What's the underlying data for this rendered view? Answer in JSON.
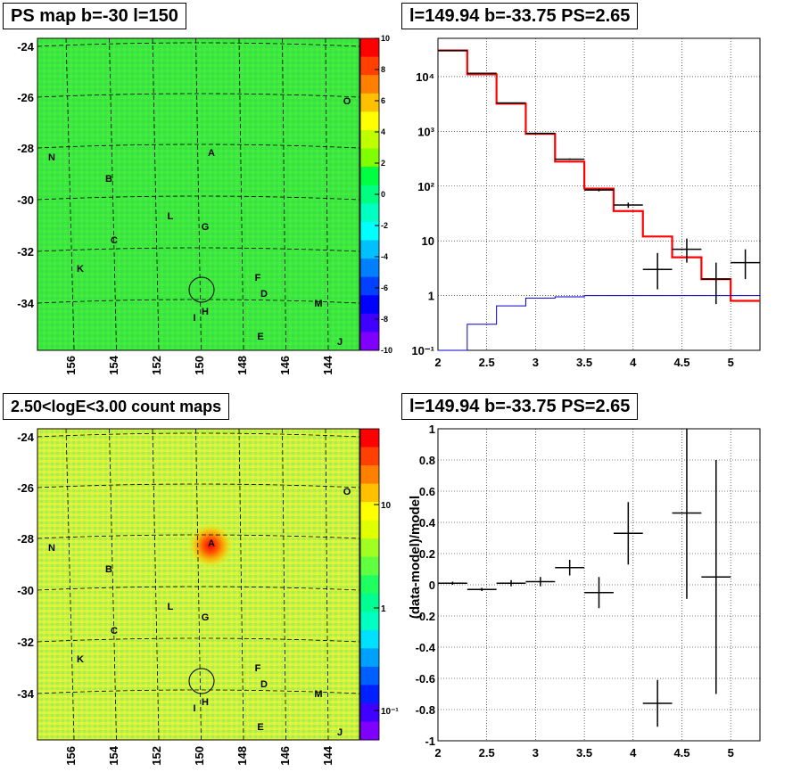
{
  "panels": {
    "map_top": {
      "title": "PS map b=-30 l=150",
      "colorbar_ticks": [
        "10",
        "8",
        "6",
        "4",
        "2",
        "0",
        "-2",
        "-4",
        "-6",
        "-8",
        "-10"
      ],
      "colorbar_colors": [
        "#ff0000",
        "#ff4000",
        "#ff8000",
        "#ffc000",
        "#ffff00",
        "#c0ff00",
        "#80ff00",
        "#00ff40",
        "#00ff80",
        "#00ffc0",
        "#00ffff",
        "#00c0ff",
        "#0080ff",
        "#0040ff",
        "#0000ff",
        "#4000ff",
        "#8000ff"
      ]
    },
    "map_bottom": {
      "title": "2.50<logE<3.00 count maps",
      "colorbar_ticks": [
        "10",
        "1",
        "10⁻¹"
      ]
    },
    "spectrum": {
      "title": "l=149.94 b=-33.75 PS=2.65",
      "y_ticks": [
        "10⁴",
        "10³",
        "10²",
        "10",
        "1",
        "10⁻¹"
      ],
      "x_ticks": [
        "2",
        "2.5",
        "3",
        "3.5",
        "4",
        "4.5",
        "5"
      ]
    },
    "residual": {
      "title": "l=149.94 b=-33.75 PS=2.65",
      "ylabel": "(data-model)/model",
      "y_ticks": [
        "1",
        "0.8",
        "0.6",
        "0.4",
        "0.2",
        "0",
        "-0.2",
        "-0.4",
        "-0.6",
        "-0.8",
        "-1"
      ],
      "x_ticks": [
        "2",
        "2.5",
        "3",
        "3.5",
        "4",
        "4.5",
        "5"
      ]
    }
  },
  "map_axes": {
    "y_ticks": [
      "-24",
      "-26",
      "-28",
      "-30",
      "-32",
      "-34"
    ],
    "x_ticks": [
      "156",
      "154",
      "152",
      "150",
      "148",
      "146",
      "144"
    ]
  },
  "sources": [
    "A",
    "B",
    "C",
    "D",
    "E",
    "F",
    "G",
    "H",
    "I",
    "J",
    "K",
    "L",
    "M",
    "N",
    "O"
  ],
  "chart_data": [
    {
      "type": "line",
      "title": "l=149.94 b=-33.75 PS=2.65",
      "log_y": true,
      "xlim": [
        2,
        5.3
      ],
      "ylim": [
        0.1,
        50000
      ],
      "grid": true,
      "bin_edges": [
        2.0,
        2.3,
        2.6,
        2.9,
        3.2,
        3.5,
        3.8,
        4.1,
        4.4,
        4.7,
        5.0,
        5.3
      ],
      "series": [
        {
          "color": "#ff0000",
          "kind": "step",
          "values": [
            30000,
            11000,
            3200,
            900,
            280,
            90,
            35,
            12,
            5,
            2,
            0.8
          ]
        },
        {
          "color": "#0000cc",
          "kind": "step",
          "values": [
            0.1,
            0.3,
            0.65,
            0.9,
            0.95,
            1.0,
            1.0,
            1.0,
            1.0,
            1.0,
            1.0
          ]
        },
        {
          "color": "#000000",
          "kind": "points",
          "x": [
            2.15,
            2.45,
            2.75,
            3.05,
            3.35,
            3.65,
            3.95,
            4.25,
            4.55,
            4.85,
            5.15
          ],
          "y": [
            30000,
            11500,
            3300,
            920,
            310,
            85,
            45,
            3,
            7,
            2,
            4
          ],
          "ylow": [
            29500,
            11300,
            3240,
            900,
            300,
            80,
            40,
            1.3,
            4,
            0.7,
            2
          ],
          "yhigh": [
            30500,
            11700,
            3360,
            940,
            320,
            90,
            50,
            6,
            11,
            4,
            7
          ]
        }
      ]
    },
    {
      "type": "scatter",
      "title": "l=149.94 b=-33.75 PS=2.65",
      "ylabel": "(data-model)/model",
      "xlim": [
        2,
        5.3
      ],
      "ylim": [
        -1,
        1
      ],
      "grid": true,
      "series": [
        {
          "color": "#000000",
          "x": [
            2.15,
            2.45,
            2.75,
            3.05,
            3.35,
            3.65,
            3.95,
            4.25,
            4.55,
            4.85
          ],
          "y": [
            0.01,
            -0.03,
            0.01,
            0.02,
            0.11,
            -0.05,
            0.33,
            -0.76,
            0.46,
            0.05
          ],
          "err": [
            0.01,
            0.01,
            0.02,
            0.03,
            0.05,
            0.1,
            0.2,
            0.15,
            0.55,
            0.75
          ]
        }
      ]
    }
  ]
}
